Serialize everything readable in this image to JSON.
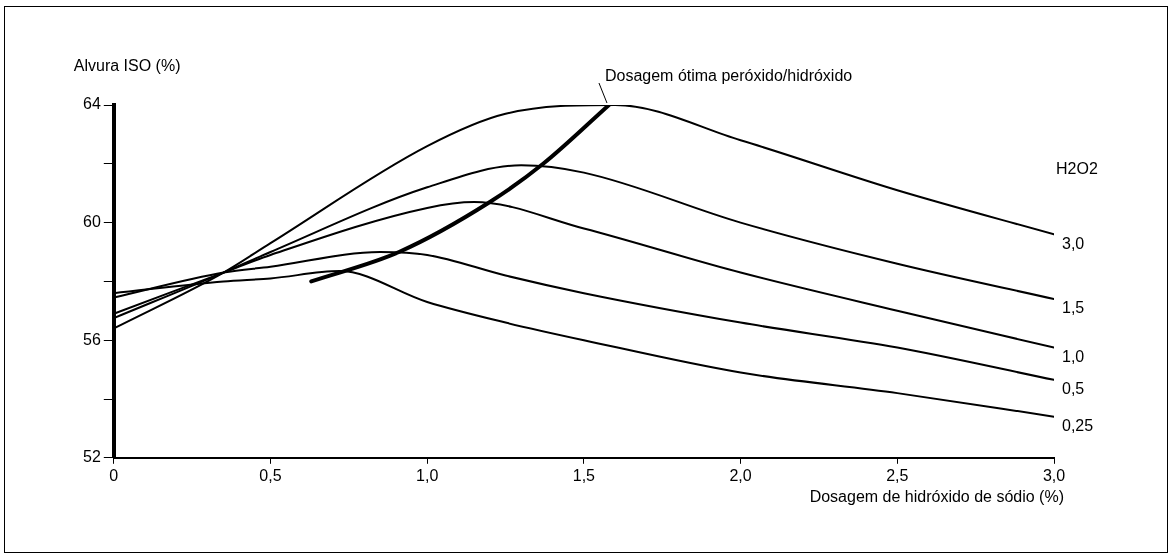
{
  "chart_data": {
    "type": "line",
    "xlabel": "Dosagem de hidróxido de sódio (%)",
    "ylabel": "Alvura ISO (%)",
    "legend_title": "H2O2",
    "series": [
      {
        "name": "3,0",
        "color": "#000000",
        "x": [
          0,
          0.35,
          0.5,
          1.0,
          1.25,
          1.6,
          2.0,
          2.5,
          3.0
        ],
        "values": [
          56.4,
          58.3,
          59.3,
          62.6,
          63.7,
          64,
          62.8,
          61.1,
          59.6
        ]
      },
      {
        "name": "1,5",
        "color": "#000000",
        "x": [
          0,
          0.35,
          0.5,
          1.0,
          1.3,
          1.5,
          2.0,
          2.5,
          3.0
        ],
        "values": [
          56.75,
          58.3,
          59.0,
          61.2,
          61.95,
          61.7,
          60.0,
          58.6,
          57.4
        ]
      },
      {
        "name": "1,0",
        "color": "#000000",
        "x": [
          0,
          0.35,
          0.5,
          1.0,
          1.15,
          1.5,
          2.0,
          2.5,
          3.0
        ],
        "values": [
          56.9,
          58.3,
          58.9,
          60.5,
          60.7,
          59.8,
          58.3,
          57.0,
          55.75
        ]
      },
      {
        "name": "0,5",
        "color": "#000000",
        "x": [
          0,
          0.35,
          0.5,
          0.85,
          1.0,
          1.25,
          1.5,
          2.0,
          2.5,
          3.0
        ],
        "values": [
          57.45,
          58.3,
          58.5,
          59.0,
          58.9,
          58.2,
          57.6,
          56.6,
          55.75,
          54.65
        ]
      },
      {
        "name": "0,25",
        "color": "#000000",
        "x": [
          0,
          0.35,
          0.5,
          0.72,
          1.0,
          1.25,
          1.5,
          2.0,
          2.5,
          3.0
        ],
        "values": [
          57.6,
          58.0,
          58.1,
          58.35,
          57.3,
          56.6,
          56.0,
          54.9,
          54.2,
          53.4
        ]
      },
      {
        "color": "#000000",
        "x": [
          0.63,
          0.91,
          1.2,
          1.37,
          1.58
        ],
        "values": [
          58.0,
          59.0,
          60.7,
          62.0,
          64
        ]
      }
    ],
    "annotations": [
      {
        "text": "Dosagem ótima peróxido/hidróxido",
        "x": 1.58,
        "y": 64
      }
    ],
    "xlim": [
      0,
      3
    ],
    "xticks": [
      0,
      {
        "value": 0.5,
        "label": "0,5"
      },
      {
        "value": 1,
        "label": "1,0"
      },
      {
        "value": 1.5,
        "label": "1,5"
      },
      {
        "value": 2,
        "label": "2,0"
      },
      {
        "value": 2.5,
        "label": "2,5"
      },
      {
        "value": 3,
        "label": "3,0"
      }
    ],
    "ylim": [
      52,
      64
    ],
    "yticks": [
      52,
      {
        "value": 54,
        "label": null
      },
      56,
      {
        "value": 58,
        "label": null
      },
      60,
      {
        "value": 62,
        "label": null
      },
      64
    ],
    "grid": false,
    "marker": "none",
    "line_style": "solid"
  }
}
